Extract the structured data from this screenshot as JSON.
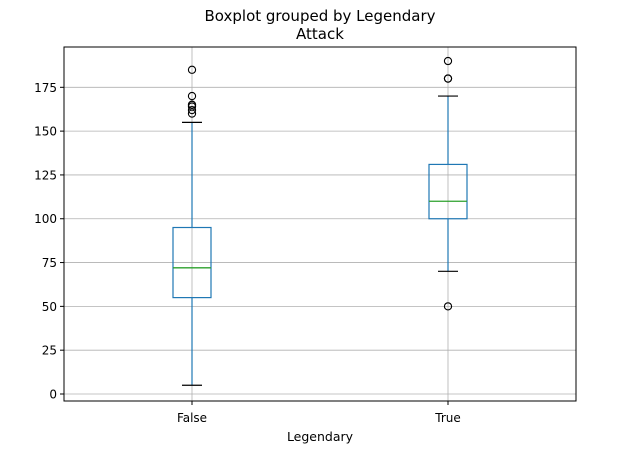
{
  "chart_data": {
    "type": "boxplot",
    "title": "Boxplot grouped by Legendary",
    "subtitle": "Attack",
    "xlabel": "Legendary",
    "ylabel": "",
    "ylim": [
      -4,
      198
    ],
    "yticks": [
      0,
      25,
      50,
      75,
      100,
      125,
      150,
      175
    ],
    "grid": true,
    "categories": [
      "False",
      "True"
    ],
    "boxes": [
      {
        "category": "False",
        "whisker_low": 5,
        "q1": 55,
        "median": 72,
        "q3": 95,
        "whisker_high": 155,
        "outliers": [
          160,
          162,
          164,
          165,
          165,
          170,
          185
        ]
      },
      {
        "category": "True",
        "whisker_low": 70,
        "q1": 100,
        "median": 110,
        "q3": 131,
        "whisker_high": 170,
        "outliers": [
          50,
          180,
          180,
          190
        ]
      }
    ],
    "colors": {
      "box": "#1f77b4",
      "median": "#2ca02c",
      "whisker_cap": "#000000",
      "outlier": "#000000",
      "grid": "#b0b0b0"
    }
  }
}
